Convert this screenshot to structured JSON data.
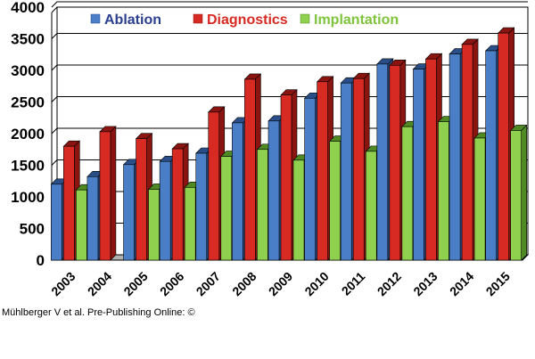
{
  "chart_data": {
    "type": "bar",
    "categories": [
      "2003",
      "2004",
      "2005",
      "2006",
      "2007",
      "2008",
      "2009",
      "2010",
      "2011",
      "2012",
      "2013",
      "2014",
      "2015"
    ],
    "series": [
      {
        "name": "Ablation",
        "color": "#4a7fc8",
        "dark": "#2a4f88",
        "values": [
          1200,
          1320,
          1510,
          1560,
          1690,
          2170,
          2200,
          2560,
          2800,
          3100,
          3020,
          3260,
          3310
        ]
      },
      {
        "name": "Diagnostics",
        "color": "#d62a22",
        "dark": "#8a1410",
        "values": [
          1800,
          2030,
          1920,
          1760,
          2340,
          2860,
          2610,
          2820,
          2870,
          3080,
          3180,
          3410,
          3590
        ]
      },
      {
        "name": "Implantation",
        "color": "#8fd14f",
        "dark": "#4f8a22",
        "values": [
          1110,
          null,
          1120,
          1150,
          1640,
          1750,
          1580,
          1880,
          1720,
          2110,
          2190,
          1930,
          2050
        ]
      }
    ],
    "ylim": [
      0,
      4000
    ],
    "yticks": [
      "0",
      "500",
      "1000",
      "1500",
      "2000",
      "2500",
      "3000",
      "3500",
      "4000"
    ],
    "grid": true,
    "legend_position": "top"
  },
  "credit": "Mühlberger V et al. Pre-Publishing Online: ©"
}
